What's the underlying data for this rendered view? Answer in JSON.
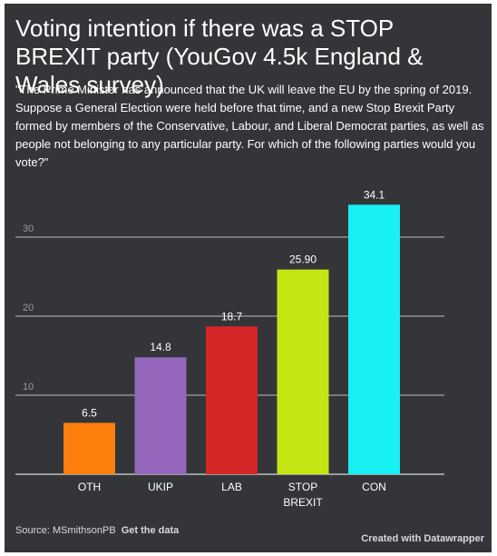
{
  "chart_data": {
    "type": "bar",
    "title": "Voting intention if there was a STOP BREXIT party (YouGov 4.5k England & Wales survey)",
    "subtitle": "\"The Prime Minister has announced that the UK will leave the EU by the spring of 2019. Suppose a General Election were held before that time, and a new Stop Brexit Party formed by members of the Conservative, Labour, and Liberal Democrat parties, as well as people not belonging to any particular party. For which of the following parties would you vote?\"",
    "categories": [
      [
        "OTH"
      ],
      [
        "UKIP"
      ],
      [
        "LAB"
      ],
      [
        "STOP",
        "BREXIT"
      ],
      [
        "CON"
      ]
    ],
    "values": [
      6.5,
      14.8,
      18.7,
      25.9,
      34.1
    ],
    "value_labels": [
      "6.5",
      "14.8",
      "18.7",
      "25.90",
      "34.1"
    ],
    "colors": [
      "#ff7f0e",
      "#9467bd",
      "#d62728",
      "#c5e614",
      "#17f0f5"
    ],
    "yticks": [
      10,
      20,
      30
    ],
    "ylim": [
      0,
      35
    ],
    "grid": true,
    "xlabel": "",
    "ylabel": ""
  },
  "footer": {
    "source_prefix": "Source: MSmithsonPB",
    "get_data": "Get the data",
    "credit": "Created with Datawrapper"
  }
}
